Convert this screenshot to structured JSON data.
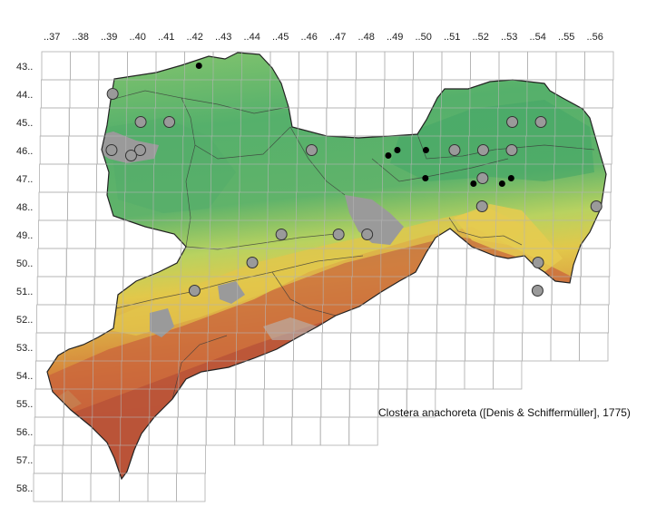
{
  "map": {
    "caption": "Clostera anachoreta ([Denis & Schiffermüller], 1775)",
    "column_labels": [
      "..37",
      "..38",
      "..39",
      "..40",
      "..41",
      "..42",
      "..43",
      "..44",
      "..45",
      "..46",
      "..47",
      "..48",
      "..49",
      "..50",
      "..51",
      "..52",
      "..53",
      "..54",
      "..55",
      "..56"
    ],
    "row_labels": [
      "43..",
      "44..",
      "45..",
      "46..",
      "47..",
      "48..",
      "49..",
      "50..",
      "51..",
      "52..",
      "53..",
      "54..",
      "55..",
      "56..",
      "57..",
      "58.."
    ],
    "colors": {
      "lowland": "#4fae69",
      "low_hills": "#8dc96a",
      "mid": "#e0c84a",
      "upper": "#d98a3a",
      "high": "#b8503a",
      "peak": "#b9b9b9",
      "urban": "#9a9a9a",
      "marker_old": "#9a9a9a",
      "marker_new": "#000000"
    },
    "records_old": [
      {
        "col": "..39",
        "row": "44.."
      },
      {
        "col": "..40",
        "row": "45.."
      },
      {
        "col": "..41",
        "row": "45.."
      },
      {
        "col": "..39",
        "row": "46.."
      },
      {
        "col": "..40",
        "row": "46.."
      },
      {
        "col": "..40",
        "row": "46.."
      },
      {
        "col": "..46",
        "row": "46.."
      },
      {
        "col": "..51",
        "row": "46.."
      },
      {
        "col": "..53",
        "row": "45.."
      },
      {
        "col": "..54",
        "row": "45.."
      },
      {
        "col": "..52",
        "row": "46.."
      },
      {
        "col": "..53",
        "row": "46.."
      },
      {
        "col": "..52",
        "row": "47.."
      },
      {
        "col": "..52",
        "row": "48.."
      },
      {
        "col": "..56",
        "row": "48.."
      },
      {
        "col": "..48",
        "row": "49.."
      },
      {
        "col": "..45",
        "row": "49.."
      },
      {
        "col": "..47",
        "row": "49.."
      },
      {
        "col": "..44",
        "row": "50.."
      },
      {
        "col": "..42",
        "row": "51.."
      },
      {
        "col": "..54",
        "row": "50.."
      },
      {
        "col": "..54",
        "row": "51.."
      }
    ],
    "records_new": [
      {
        "col": "..42",
        "row": "43.."
      },
      {
        "col": "..49",
        "row": "46.."
      },
      {
        "col": "..49",
        "row": "46.."
      },
      {
        "col": "..50",
        "row": "46.."
      },
      {
        "col": "..50",
        "row": "47.."
      },
      {
        "col": "..52",
        "row": "47.."
      },
      {
        "col": "..53",
        "row": "47.."
      },
      {
        "col": "..53",
        "row": "47.."
      }
    ]
  }
}
